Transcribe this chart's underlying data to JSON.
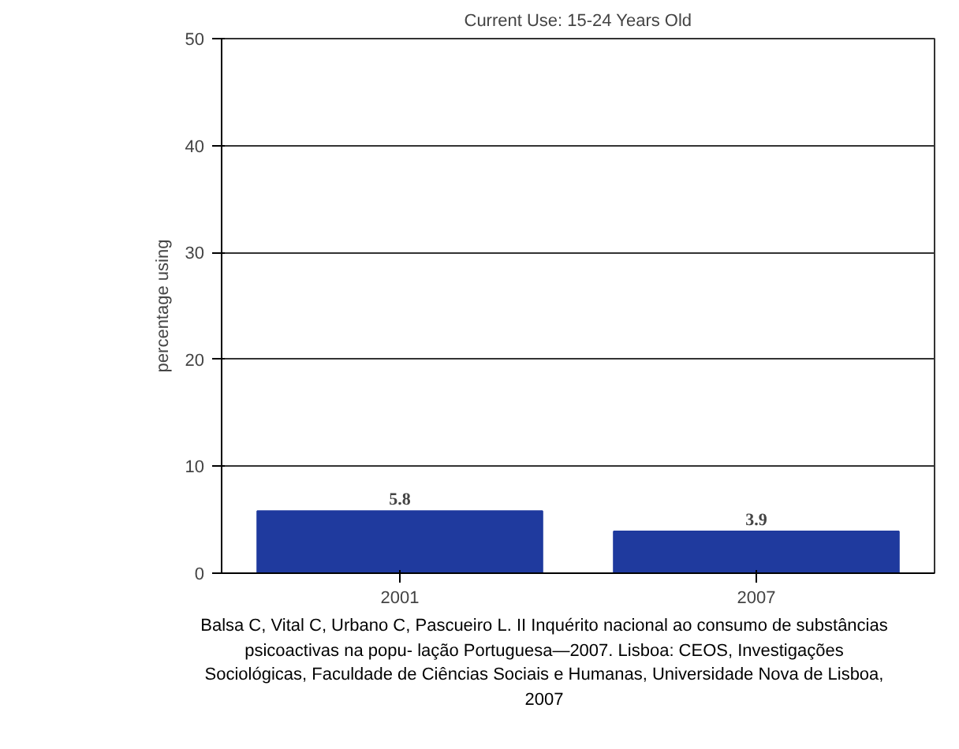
{
  "chart_data": {
    "type": "bar",
    "title": "Current Use: 15-24 Years Old",
    "ylabel": "percentage using",
    "categories": [
      "2001",
      "2007"
    ],
    "values": [
      5.8,
      3.9
    ],
    "color": "#1f3a9e",
    "data_labels": true,
    "ylim": [
      0,
      50
    ],
    "yticks": [
      0,
      10,
      20,
      30,
      40,
      50
    ],
    "grid": "y",
    "annotations": [
      "Balsa C, Vital C, Urbano C, Pascueiro L. II Inquérito nacional ao consumo de substâncias psicoactivas na popu- lação Portuguesa—2007. Lisboa: CEOS, Investigações Sociológicas, Faculdade de Ciências Sociais e Humanas, Universidade Nova de Lisboa, 2007"
    ]
  }
}
